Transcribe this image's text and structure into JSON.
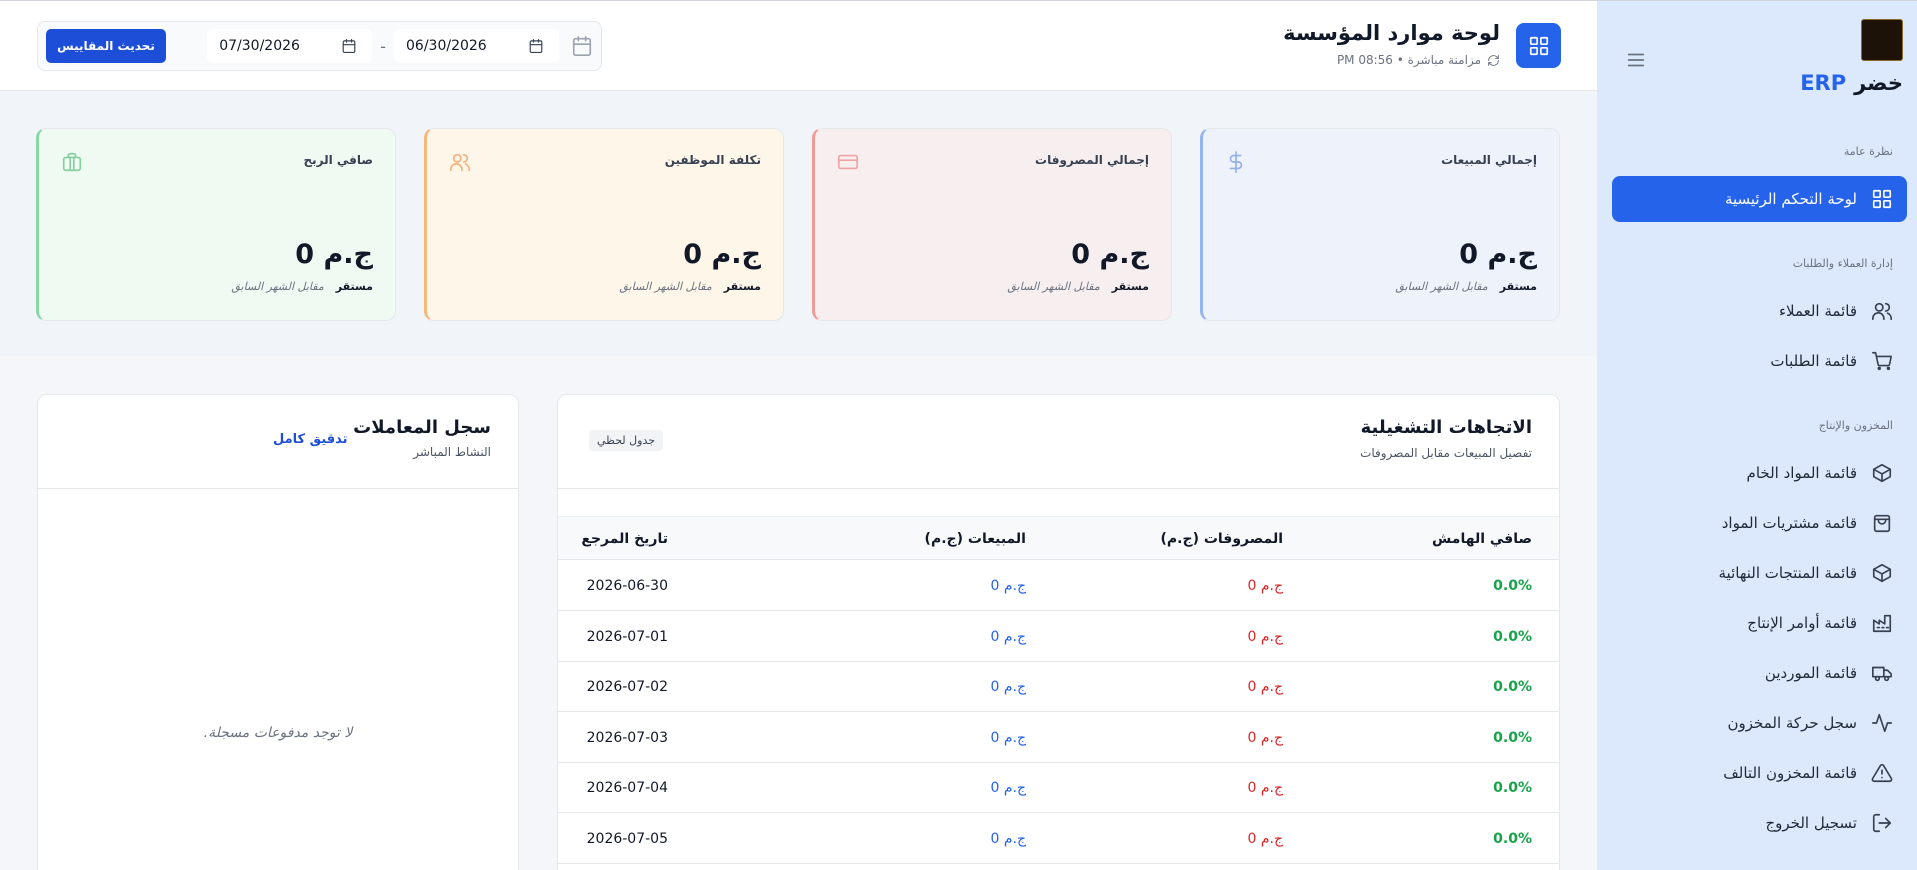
{
  "sidebar": {
    "brand": "خضر",
    "brand_suffix": "ERP",
    "sections": [
      {
        "title": "نظرة عامة",
        "items": [
          "لوحة التحكم الرئيسية"
        ]
      },
      {
        "title": "إدارة العملاء والطلبات",
        "items": [
          "قائمة العملاء",
          "قائمة الطلبات"
        ]
      },
      {
        "title": "المخزون والإنتاج",
        "items": [
          "قائمة المواد الخام",
          "قائمة مشتريات المواد",
          "قائمة المنتجات النهائية",
          "قائمة أوامر الإنتاج",
          "قائمة الموردين",
          "سجل حركة المخزون",
          "قائمة المخزون التالف"
        ]
      }
    ],
    "logout": "تسجيل الخروج"
  },
  "header": {
    "title": "لوحة موارد المؤسسة",
    "sync": "مزامنة مباشرة • PM 08:56",
    "date_from": "06/30/2026",
    "separator": "-",
    "date_to": "07/30/2026",
    "refresh": "تحديث المقاييس"
  },
  "cards": [
    {
      "title": "إجمالي المبيعات",
      "value": "ج.م 0",
      "trend": "مستقر",
      "compare": "مقابل الشهر السابق"
    },
    {
      "title": "إجمالي المصروفات",
      "value": "ج.م 0",
      "trend": "مستقر",
      "compare": "مقابل الشهر السابق"
    },
    {
      "title": "تكلفة الموظفين",
      "value": "ج.م 0",
      "trend": "مستقر",
      "compare": "مقابل الشهر السابق"
    },
    {
      "title": "صافي الربح",
      "value": "ج.م 0",
      "trend": "مستقر",
      "compare": "مقابل الشهر السابق"
    }
  ],
  "trends": {
    "title": "الاتجاهات التشغيلية",
    "subtitle": "تفصيل المبيعات مقابل المصروفات",
    "badge": "جدول لحظي",
    "columns": [
      "صافي الهامش",
      "المصروفات (ج.م)",
      "المبيعات (ج.م)",
      "تاريخ المرجع"
    ],
    "rows": [
      [
        "0.0%",
        "ج.م 0",
        "ج.م 0",
        "2026-06-30"
      ],
      [
        "0.0%",
        "ج.م 0",
        "ج.م 0",
        "2026-07-01"
      ],
      [
        "0.0%",
        "ج.م 0",
        "ج.م 0",
        "2026-07-02"
      ],
      [
        "0.0%",
        "ج.م 0",
        "ج.م 0",
        "2026-07-03"
      ],
      [
        "0.0%",
        "ج.م 0",
        "ج.م 0",
        "2026-07-04"
      ],
      [
        "0.0%",
        "ج.م 0",
        "ج.م 0",
        "2026-07-05"
      ]
    ]
  },
  "ledger": {
    "title": "سجل المعاملات",
    "subtitle": "النشاط المباشر",
    "link": "تدقيق كامل",
    "empty": "لا توجد مدفوعات مسجلة."
  }
}
